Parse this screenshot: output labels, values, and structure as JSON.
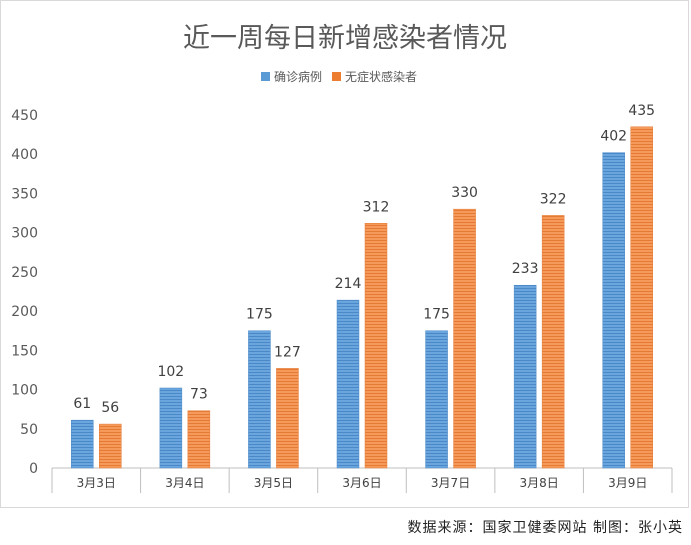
{
  "chart_data": {
    "type": "bar",
    "title": "近一周每日新增感染者情况",
    "categories": [
      "3月3日",
      "3月4日",
      "3月5日",
      "3月6日",
      "3月7日",
      "3月8日",
      "3月9日"
    ],
    "series": [
      {
        "name": "确诊病例",
        "values": [
          61,
          102,
          175,
          214,
          175,
          233,
          402
        ],
        "color": "#5b9bd5"
      },
      {
        "name": "无症状感染者",
        "values": [
          56,
          73,
          127,
          312,
          330,
          322,
          435
        ],
        "color": "#ed7d31"
      }
    ],
    "ylim": [
      0,
      450
    ],
    "yticks": [
      0,
      50,
      100,
      150,
      200,
      250,
      300,
      350,
      400,
      450
    ],
    "legend": "top-center",
    "grid": false
  },
  "source_text": "数据来源：国家卫健委网站  制图：张小英"
}
